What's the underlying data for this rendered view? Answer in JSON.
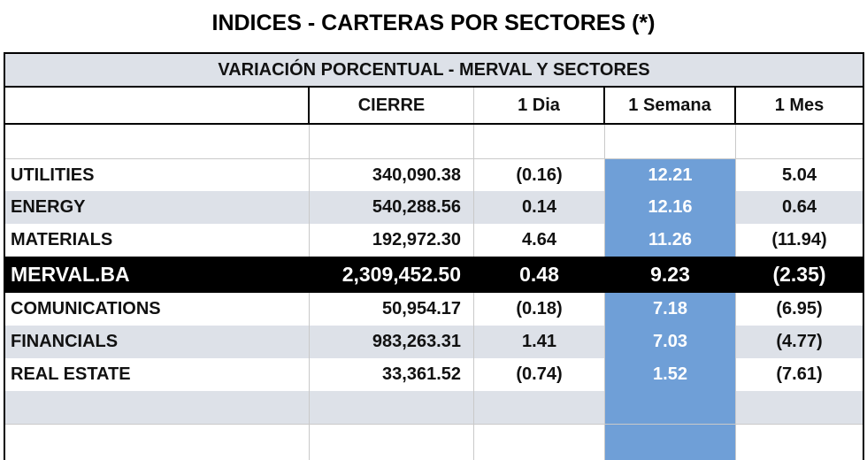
{
  "title": "INDICES - CARTERAS POR SECTORES (*)",
  "table": {
    "heading": "VARIACIÓN PORCENTUAL - MERVAL Y SECTORES",
    "columns": [
      "",
      "CIERRE",
      "1 Dia",
      "1 Semana",
      "1 Mes"
    ],
    "rows": [
      {
        "name": "UTILITIES",
        "cierre": "340,090.38",
        "dia": "(0.16)",
        "semana": "12.21",
        "mes": "5.04"
      },
      {
        "name": "ENERGY",
        "cierre": "540,288.56",
        "dia": "0.14",
        "semana": "12.16",
        "mes": "0.64"
      },
      {
        "name": "MATERIALS",
        "cierre": "192,972.30",
        "dia": "4.64",
        "semana": "11.26",
        "mes": "(11.94)"
      },
      {
        "name": "MERVAL.BA",
        "cierre": "2,309,452.50",
        "dia": "0.48",
        "semana": "9.23",
        "mes": "(2.35)"
      },
      {
        "name": "COMUNICATIONS",
        "cierre": "50,954.17",
        "dia": "(0.18)",
        "semana": "7.18",
        "mes": "(6.95)"
      },
      {
        "name": "FINANCIALS",
        "cierre": "983,263.31",
        "dia": "1.41",
        "semana": "7.03",
        "mes": "(4.77)"
      },
      {
        "name": "REAL ESTATE",
        "cierre": "33,361.52",
        "dia": "(0.74)",
        "semana": "1.52",
        "mes": "(7.61)"
      }
    ]
  },
  "colors": {
    "highlight_blue": "#6f9fd7",
    "band_gray": "#dde1e8",
    "merval_row_bg": "#000000"
  }
}
